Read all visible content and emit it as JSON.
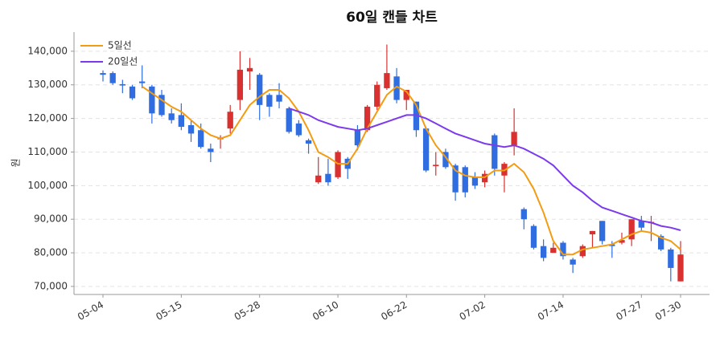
{
  "chart_data": {
    "type": "candlestick",
    "title": "60일 캔들 차트",
    "y_label": "원",
    "categories": [
      "05-04",
      null,
      null,
      null,
      null,
      null,
      null,
      null,
      "05-15",
      null,
      null,
      null,
      null,
      null,
      null,
      null,
      "05-28",
      null,
      null,
      null,
      null,
      null,
      null,
      null,
      "06-10",
      null,
      null,
      null,
      null,
      null,
      null,
      "06-22",
      null,
      null,
      null,
      null,
      null,
      null,
      null,
      "07-02",
      null,
      null,
      null,
      null,
      null,
      null,
      null,
      "07-14",
      null,
      null,
      null,
      null,
      null,
      null,
      null,
      "07-27",
      null,
      null,
      null,
      "07-30"
    ],
    "open": [
      133500,
      133500,
      130200,
      129500,
      131000,
      129500,
      127000,
      121500,
      121000,
      118000,
      116500,
      111000,
      113800,
      117000,
      125500,
      134000,
      133000,
      127000,
      127000,
      123000,
      118500,
      113500,
      101000,
      103500,
      102500,
      108000,
      116500,
      116500,
      123500,
      129000,
      132500,
      125500,
      125000,
      117000,
      105800,
      110000,
      106000,
      105500,
      102500,
      101000,
      115000,
      103000,
      112000,
      93000,
      88000,
      82000,
      80000,
      83000,
      78000,
      79000,
      85500,
      89500,
      82500,
      83000,
      84000,
      89500,
      88800,
      85000,
      81000,
      71500
    ],
    "high": [
      134300,
      134000,
      131500,
      130000,
      135800,
      130000,
      128500,
      123000,
      124500,
      119500,
      118500,
      112500,
      115000,
      124000,
      140000,
      138000,
      133500,
      127500,
      130500,
      123500,
      119500,
      114000,
      108500,
      108000,
      110500,
      108500,
      118000,
      124000,
      131000,
      142000,
      135000,
      128500,
      125000,
      117500,
      110000,
      111000,
      106500,
      106000,
      104000,
      104500,
      115500,
      107000,
      123000,
      93500,
      88500,
      84000,
      83000,
      83500,
      78500,
      82500,
      86500,
      89500,
      83500,
      86000,
      90000,
      91000,
      91000,
      85500,
      81500,
      83500
    ],
    "low": [
      131000,
      130000,
      127500,
      125500,
      129000,
      118500,
      120500,
      118500,
      116500,
      113000,
      111000,
      107000,
      111000,
      115500,
      122500,
      128500,
      119500,
      120500,
      123000,
      115500,
      114500,
      109500,
      100500,
      100000,
      102000,
      102000,
      110500,
      116000,
      122500,
      128500,
      124500,
      122500,
      114500,
      104000,
      103000,
      105000,
      95500,
      96500,
      99000,
      99500,
      103000,
      98000,
      109000,
      87000,
      81000,
      77500,
      80000,
      78000,
      74000,
      78500,
      81500,
      82500,
      78500,
      82500,
      82000,
      86500,
      83500,
      80500,
      71500,
      71500
    ],
    "close": [
      133000,
      130500,
      129800,
      126000,
      130500,
      121500,
      121000,
      119500,
      117500,
      115500,
      111500,
      110000,
      114200,
      122000,
      134500,
      135000,
      124000,
      123500,
      125000,
      116000,
      115000,
      112500,
      103000,
      101000,
      110000,
      105000,
      112000,
      123500,
      130000,
      133500,
      125500,
      128500,
      116500,
      104500,
      106200,
      105500,
      98000,
      98000,
      100000,
      103500,
      105000,
      106500,
      116000,
      90000,
      81500,
      78500,
      81500,
      79000,
      76500,
      82000,
      86500,
      83500,
      82000,
      83800,
      90000,
      87500,
      89200,
      81000,
      75500,
      79500
    ],
    "up_color": "#d93030",
    "down_color": "#2f6de0",
    "series": [
      {
        "name": "5일선",
        "color": "#f39c12",
        "values": [
          null,
          null,
          null,
          null,
          129500,
          127500,
          125500,
          123500,
          122000,
          119500,
          117000,
          115000,
          114000,
          115000,
          119500,
          124000,
          126500,
          128500,
          128500,
          126000,
          122000,
          116500,
          110000,
          108500,
          106500,
          106500,
          111000,
          117000,
          122000,
          127000,
          129500,
          128000,
          124000,
          117000,
          112000,
          108500,
          104500,
          103000,
          102500,
          102500,
          104500,
          104500,
          106500,
          104000,
          99000,
          92000,
          83500,
          79500,
          79500,
          81000,
          81500,
          82000,
          82500,
          84000,
          85500,
          86500,
          86000,
          84500,
          83500,
          81000
        ]
      },
      {
        "name": "20일선",
        "color": "#7c3aed",
        "values": [
          null,
          null,
          null,
          null,
          null,
          null,
          null,
          null,
          null,
          null,
          null,
          null,
          null,
          null,
          null,
          null,
          null,
          null,
          null,
          123000,
          122000,
          121000,
          119500,
          118500,
          117500,
          117000,
          116500,
          117000,
          118000,
          119000,
          120000,
          121000,
          121000,
          120000,
          118500,
          117000,
          115500,
          114500,
          113500,
          112500,
          112000,
          111500,
          112000,
          111000,
          109500,
          108000,
          106000,
          103000,
          100000,
          98000,
          95500,
          93500,
          92500,
          91500,
          90500,
          89500,
          89000,
          88000,
          87500,
          86700
        ]
      }
    ],
    "ylim": [
      67600,
      145700
    ],
    "yticks": [
      {
        "value": 70000,
        "label": "70,000"
      },
      {
        "value": 80000,
        "label": "80,000"
      },
      {
        "value": 90000,
        "label": "90,000"
      },
      {
        "value": 100000,
        "label": "100,000"
      },
      {
        "value": 110000,
        "label": "110,000"
      },
      {
        "value": 120000,
        "label": "120,000"
      },
      {
        "value": 130000,
        "label": "130,000"
      },
      {
        "value": 140000,
        "label": "140,000"
      }
    ],
    "grid": true,
    "legend": "upper left"
  }
}
